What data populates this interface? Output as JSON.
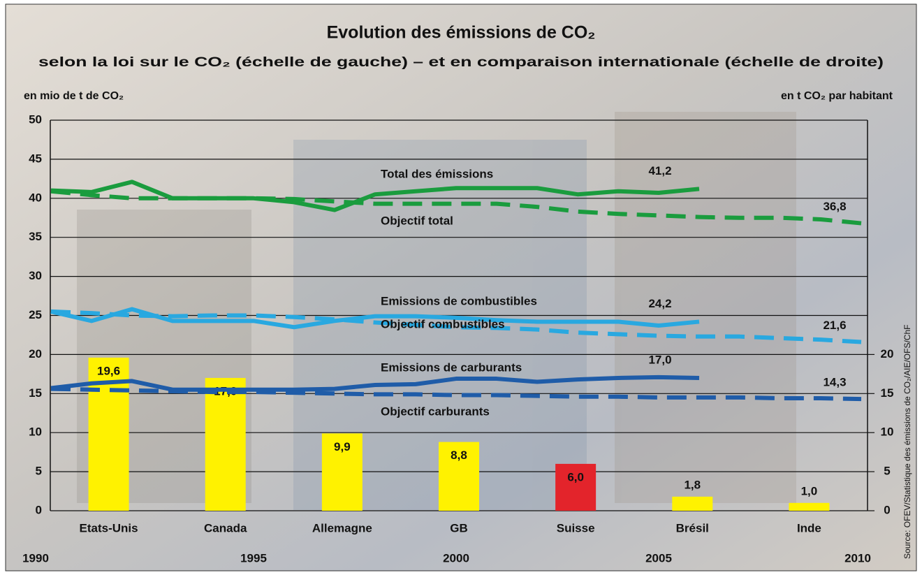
{
  "chart_data": [
    {
      "type": "line",
      "title": "Evolution des émissions de CO₂",
      "subtitle": "selon la loi sur le CO₂ (échelle de gauche) – et en comparaison internationale (échelle de droite)",
      "ylabel": "en mio de t de CO₂",
      "x": [
        1990,
        1991,
        1992,
        1993,
        1994,
        1995,
        1996,
        1997,
        1998,
        1999,
        2000,
        2001,
        2002,
        2003,
        2004,
        2005,
        2006,
        2007,
        2008,
        2009,
        2010
      ],
      "xlim": [
        1990,
        2010
      ],
      "xticks": [
        1990,
        1995,
        2000,
        2005,
        2010
      ],
      "ylim": [
        0,
        50
      ],
      "yticks": [
        0,
        5,
        10,
        15,
        20,
        25,
        30,
        35,
        40,
        45,
        50
      ],
      "grid": true,
      "series": [
        {
          "name": "Total des émissions",
          "color": "#1a9c3e",
          "style": "solid",
          "values": [
            41.0,
            40.8,
            42.1,
            40.0,
            40.0,
            40.0,
            39.5,
            38.5,
            40.5,
            40.9,
            41.3,
            41.3,
            41.3,
            40.5,
            40.9,
            40.7,
            41.2,
            null,
            null,
            null,
            null
          ],
          "value_labels": [
            null,
            null,
            null,
            null,
            null,
            null,
            null,
            null,
            null,
            null,
            null,
            null,
            null,
            null,
            null,
            null,
            "41,2",
            null,
            null,
            null,
            null
          ]
        },
        {
          "name": "Objectif total",
          "color": "#1a9c3e",
          "style": "dashed",
          "values": [
            40.9,
            40.4,
            40.0,
            40.0,
            40.0,
            40.0,
            39.9,
            39.6,
            39.3,
            39.3,
            39.3,
            39.3,
            38.9,
            38.3,
            38.0,
            37.8,
            37.6,
            37.5,
            37.5,
            37.3,
            36.8
          ],
          "value_labels": [
            null,
            null,
            null,
            null,
            null,
            null,
            null,
            null,
            null,
            null,
            null,
            null,
            null,
            null,
            null,
            null,
            null,
            null,
            null,
            null,
            "36,8"
          ]
        },
        {
          "name": "Emissions de combustibles",
          "color": "#29a8e0",
          "style": "solid",
          "values": [
            25.5,
            24.3,
            25.8,
            24.3,
            24.3,
            24.3,
            23.5,
            24.3,
            24.9,
            24.9,
            24.7,
            24.4,
            24.2,
            24.2,
            24.2,
            23.7,
            24.2,
            null,
            null,
            null,
            null
          ],
          "value_labels": [
            null,
            null,
            null,
            null,
            null,
            null,
            null,
            null,
            null,
            null,
            null,
            null,
            null,
            null,
            null,
            null,
            "24,2",
            null,
            null,
            null,
            null
          ]
        },
        {
          "name": "Objectif combustibles",
          "color": "#29a8e0",
          "style": "dashed",
          "values": [
            25.5,
            25.3,
            25.0,
            24.9,
            25.0,
            25.0,
            24.8,
            24.5,
            24.1,
            23.8,
            23.5,
            23.4,
            23.2,
            22.8,
            22.6,
            22.4,
            22.3,
            22.3,
            22.1,
            21.9,
            21.6
          ],
          "value_labels": [
            null,
            null,
            null,
            null,
            null,
            null,
            null,
            null,
            null,
            null,
            null,
            null,
            null,
            null,
            null,
            null,
            null,
            null,
            null,
            null,
            "21,6"
          ]
        },
        {
          "name": "Emissions de carburants",
          "color": "#1f5ca8",
          "style": "solid",
          "values": [
            15.7,
            16.3,
            16.6,
            15.5,
            15.5,
            15.5,
            15.5,
            15.6,
            16.1,
            16.2,
            16.9,
            16.9,
            16.5,
            16.8,
            17.0,
            17.1,
            17.0,
            null,
            null,
            null,
            null
          ],
          "value_labels": [
            null,
            null,
            null,
            null,
            null,
            null,
            null,
            null,
            null,
            null,
            null,
            null,
            null,
            null,
            null,
            null,
            "17,0",
            null,
            null,
            null,
            null
          ]
        },
        {
          "name": "Objectif carburants",
          "color": "#1f5ca8",
          "style": "dashed",
          "values": [
            15.6,
            15.5,
            15.4,
            15.3,
            15.2,
            15.2,
            15.1,
            15.0,
            14.9,
            14.9,
            14.8,
            14.8,
            14.7,
            14.6,
            14.6,
            14.5,
            14.5,
            14.5,
            14.4,
            14.4,
            14.3
          ],
          "value_labels": [
            null,
            null,
            null,
            null,
            null,
            null,
            null,
            null,
            null,
            null,
            null,
            null,
            null,
            null,
            null,
            null,
            null,
            null,
            null,
            null,
            "14,3"
          ]
        }
      ]
    },
    {
      "type": "bar",
      "axis": "y2",
      "ylabel": "en t CO₂ par habitant",
      "categories": [
        "Etats-Unis",
        "Canada",
        "Allemagne",
        "GB",
        "Suisse",
        "Brésil",
        "Inde"
      ],
      "values": [
        19.6,
        17.0,
        9.9,
        8.8,
        6.0,
        1.8,
        1.0
      ],
      "value_labels": [
        "19,6",
        "17,0",
        "9,9",
        "8,8",
        "6,0",
        "1,8",
        "1,0"
      ],
      "colors": [
        "#fff200",
        "#fff200",
        "#fff200",
        "#fff200",
        "#e3242b",
        "#fff200",
        "#fff200"
      ],
      "y2lim": [
        0,
        50
      ],
      "y2ticks": [
        0,
        5,
        10,
        15,
        20
      ]
    }
  ],
  "source": "Source: OFEV/Statistique des émissions de CO₂/AIE/OFS/ChF"
}
